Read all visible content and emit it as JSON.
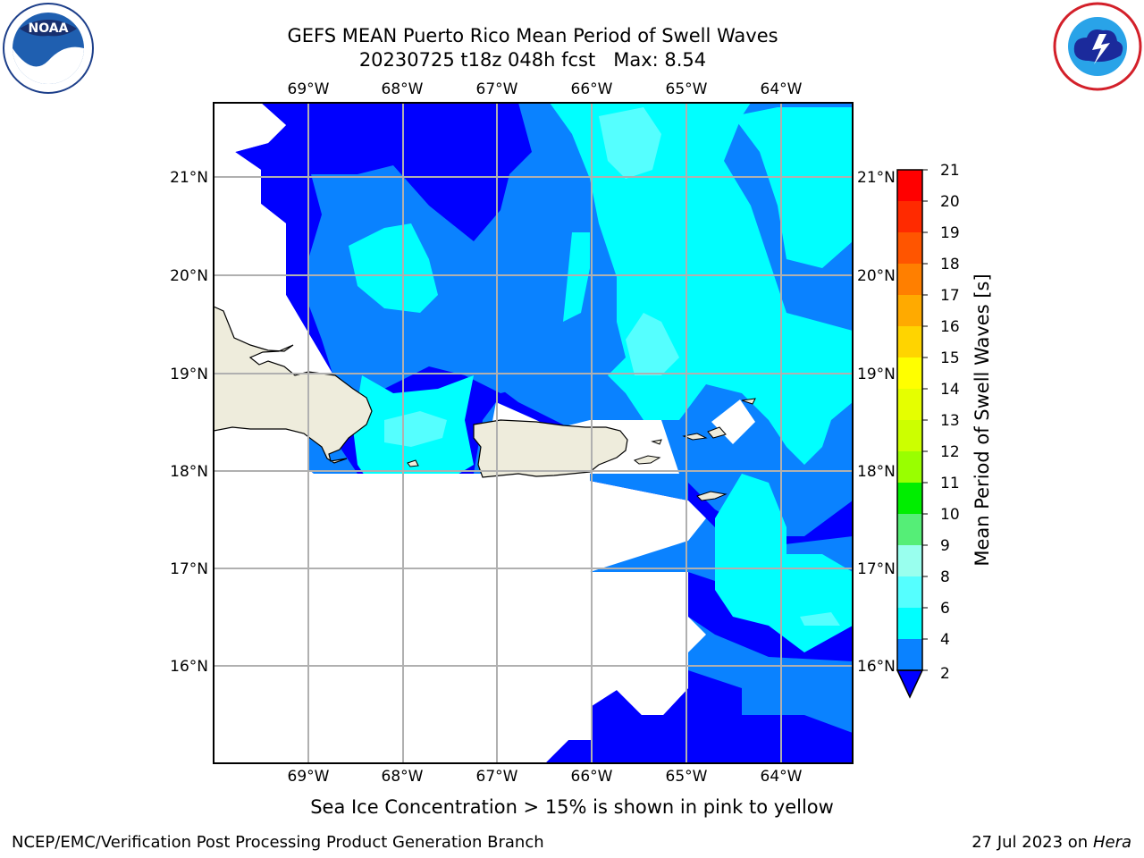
{
  "title_line1": "GEFS MEAN Puerto Rico Mean Period of Swell Waves",
  "title_line2": "20230725 t18z 048h fcst   Max: 8.54",
  "logos": {
    "left": "NOAA",
    "right": "NATIONAL WEATHER SERVICE",
    "left_icon": "noaa-logo-icon",
    "right_icon": "nws-logo-icon"
  },
  "map": {
    "lon_labels": [
      "69°W",
      "68°W",
      "67°W",
      "66°W",
      "65°W",
      "64°W"
    ],
    "lat_labels": [
      "21°N",
      "20°N",
      "19°N",
      "18°N",
      "17°N",
      "16°N"
    ],
    "gridlines": true
  },
  "colorbar": {
    "label": "Mean Period of Swell Waves [s]",
    "ticks": [
      "21",
      "20",
      "19",
      "18",
      "17",
      "16",
      "15",
      "14",
      "13",
      "12",
      "11",
      "10",
      "9",
      "8",
      "6",
      "4",
      "2"
    ],
    "colors": [
      "#ff0000",
      "#ff2a00",
      "#ff5500",
      "#ff7f00",
      "#ffaa00",
      "#ffd400",
      "#ffff00",
      "#e5ff00",
      "#ccff00",
      "#99ff00",
      "#33dd00",
      "#00ee00",
      "#55ee77",
      "#99ffee",
      "#55ffff",
      "#00ffff",
      "#0099ff",
      "#0066ff",
      "#0000ff"
    ]
  },
  "palette": {
    "land": "#eeecdc",
    "deep": "#0000ff",
    "mid": "#0a82ff",
    "light": "#00ffff",
    "lighter": "#55ffff"
  },
  "note": "Sea Ice Concentration > 15% is shown in pink to yellow",
  "footer_left": "NCEP/EMC/Verification Post Processing Product Generation Branch",
  "footer_date": "27 Jul 2023 on ",
  "footer_machine": "Hera"
}
